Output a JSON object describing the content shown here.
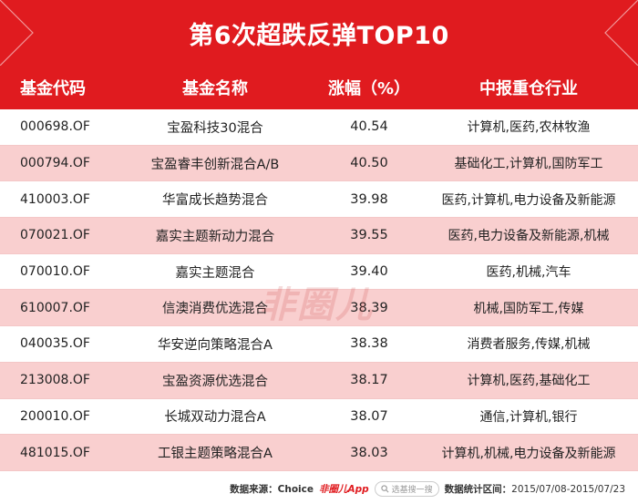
{
  "title": "第6次超跌反弹TOP10",
  "columns": {
    "code": "基金代码",
    "name": "基金名称",
    "pct": "涨幅（%）",
    "industry": "中报重仓行业"
  },
  "rows": [
    {
      "code": "000698.OF",
      "name": "宝盈科技30混合",
      "pct": "40.54",
      "industry": "计算机,医药,农林牧渔"
    },
    {
      "code": "000794.OF",
      "name": "宝盈睿丰创新混合A/B",
      "pct": "40.50",
      "industry": "基础化工,计算机,国防军工"
    },
    {
      "code": "410003.OF",
      "name": "华富成长趋势混合",
      "pct": "39.98",
      "industry": "医药,计算机,电力设备及新能源"
    },
    {
      "code": "070021.OF",
      "name": "嘉实主题新动力混合",
      "pct": "39.55",
      "industry": "医药,电力设备及新能源,机械"
    },
    {
      "code": "070010.OF",
      "name": "嘉实主题混合",
      "pct": "39.40",
      "industry": "医药,机械,汽车"
    },
    {
      "code": "610007.OF",
      "name": "信澳消费优选混合",
      "pct": "38.39",
      "industry": "机械,国防军工,传媒"
    },
    {
      "code": "040035.OF",
      "name": "华安逆向策略混合A",
      "pct": "38.38",
      "industry": "消费者服务,传媒,机械"
    },
    {
      "code": "213008.OF",
      "name": "宝盈资源优选混合",
      "pct": "38.17",
      "industry": "计算机,医药,基础化工"
    },
    {
      "code": "200010.OF",
      "name": "长城双动力混合A",
      "pct": "38.07",
      "industry": "通信,计算机,银行"
    },
    {
      "code": "481015.OF",
      "name": "工银主题策略混合A",
      "pct": "38.03",
      "industry": "计算机,机械,电力设备及新能源"
    }
  ],
  "watermark": "非圈儿",
  "footer": {
    "source_label": "数据来源：",
    "source_value": "Choice",
    "app_name": "非圈儿App",
    "search_placeholder": "选基搜一搜",
    "period_label": "数据统计区间：",
    "period_value": "2015/07/08-2015/07/23"
  },
  "colors": {
    "brand_red": "#e01b1f",
    "row_alt": "#f9cfcf"
  },
  "icons": {
    "search": "search-icon",
    "app_logo": "app-logo-icon"
  }
}
